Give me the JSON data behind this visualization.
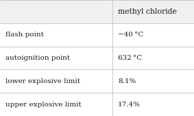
{
  "header_col1": "",
  "header_col2": "methyl chloride",
  "rows": [
    [
      "flash point",
      "−40 °C"
    ],
    [
      "autoignition point",
      "632 °C"
    ],
    [
      "lower explosive limit",
      "8.1%"
    ],
    [
      "upper explosive limit",
      "17.4%"
    ]
  ],
  "col_split": 0.578,
  "background_color": "#ffffff",
  "border_color": "#c0c0c0",
  "header_bg": "#f0f0f0",
  "text_color": "#1a1a1a",
  "font_size": 7.5,
  "header_font_size": 7.8
}
